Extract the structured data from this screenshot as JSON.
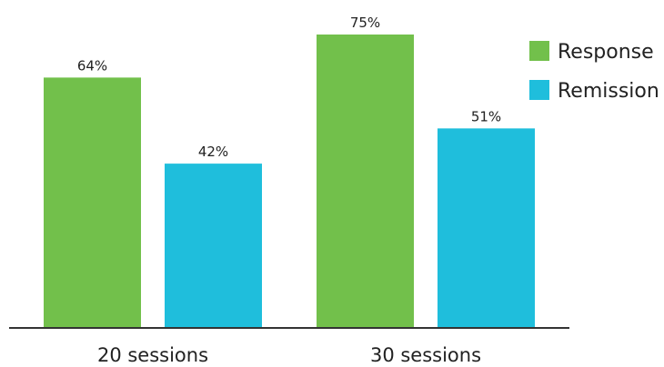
{
  "chart_data": {
    "type": "bar",
    "categories": [
      "20 sessions",
      "30 sessions"
    ],
    "series": [
      {
        "name": "Response",
        "values": [
          64,
          75
        ],
        "labels": [
          "64%",
          "75%"
        ],
        "color": "#72c04b"
      },
      {
        "name": "Remission",
        "values": [
          42,
          51
        ],
        "labels": [
          "42%",
          "51%"
        ],
        "color": "#1fbedc"
      }
    ],
    "ylim": [
      0,
      80
    ],
    "grid": false,
    "legend_position": "top-right",
    "axis_color": "#333333"
  }
}
